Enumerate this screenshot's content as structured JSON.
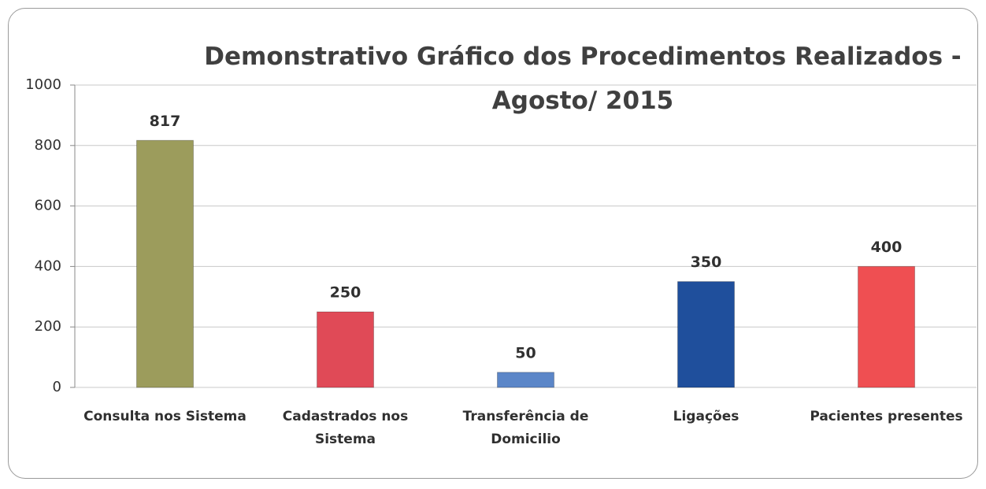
{
  "chart_data": {
    "type": "bar",
    "title": "Demonstrativo Gráfico dos Procedimentos Realizados - Agosto/ 2015",
    "categories": [
      "Consulta nos Sistema",
      "Cadastrados nos Sistema",
      "Transferência de Domicilio",
      "Ligações",
      "Pacientes presentes"
    ],
    "values": [
      817,
      250,
      50,
      350,
      400
    ],
    "colors": [
      "#9c9c5c",
      "#e04a57",
      "#5b86c8",
      "#1f4f9c",
      "#ef4f52"
    ],
    "ylim": [
      0,
      1000
    ],
    "yticks": [
      0,
      200,
      400,
      600,
      800,
      1000
    ],
    "grid": true
  }
}
